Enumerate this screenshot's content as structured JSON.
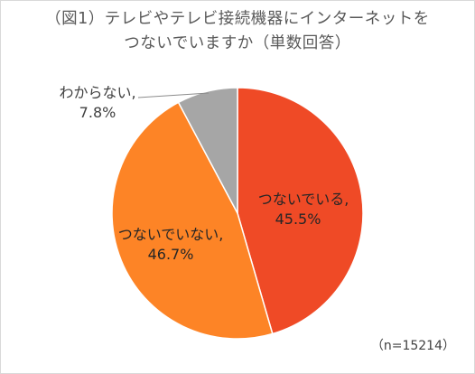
{
  "chart_data": {
    "type": "pie",
    "title_lines": [
      "（図1）テレビやテレビ接続機器にインターネットを",
      "つないでいますか（単数回答）"
    ],
    "slices": [
      {
        "label": "つないでいる,",
        "value": 45.5,
        "value_label": "45.5%",
        "color": "#ef4a26"
      },
      {
        "label": "つないでいない,",
        "value": 46.7,
        "value_label": "46.7%",
        "color": "#fd8426"
      },
      {
        "label": "わからない,",
        "value": 7.8,
        "value_label": "7.8%",
        "color": "#a6a6a6"
      }
    ],
    "sample_note": "（n=15214）"
  }
}
